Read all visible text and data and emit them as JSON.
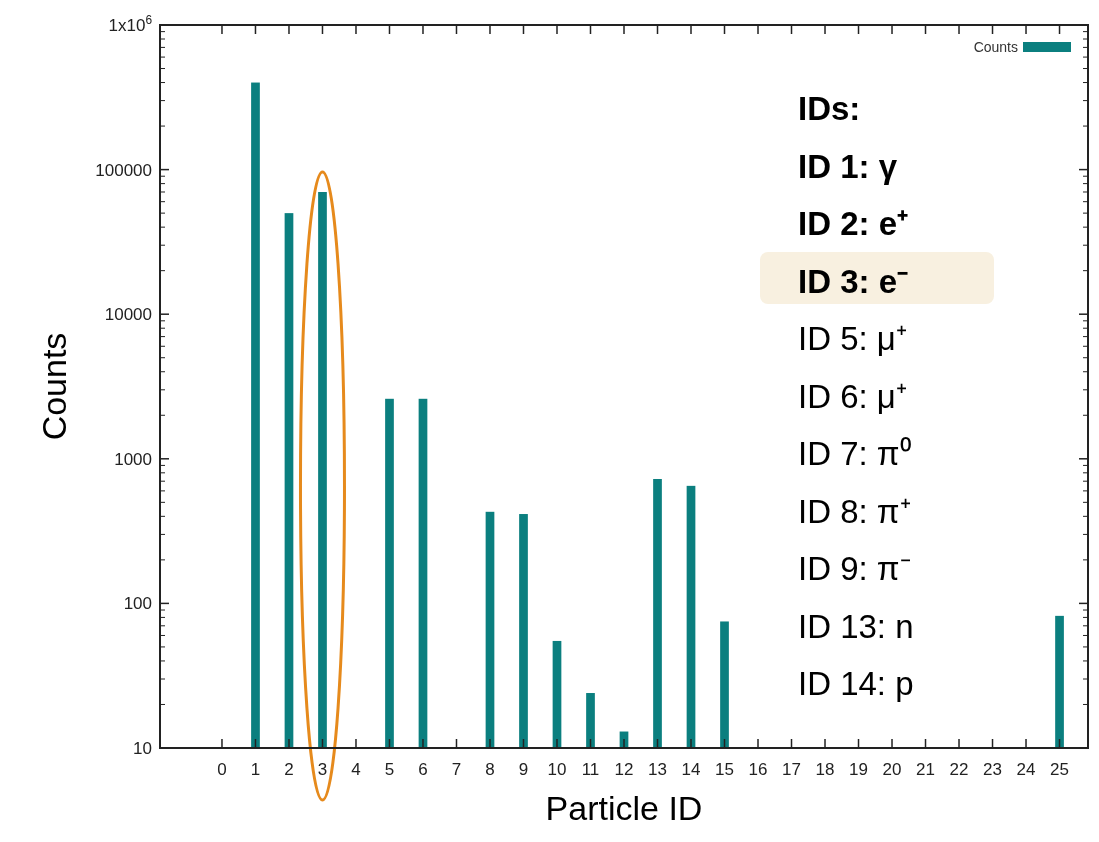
{
  "chart_data": {
    "type": "bar",
    "xlabel": "Particle ID",
    "ylabel": "Counts",
    "x": [
      1,
      2,
      3,
      5,
      6,
      8,
      9,
      10,
      11,
      12,
      13,
      14,
      15,
      25
    ],
    "series": [
      {
        "name": "Counts",
        "color": "#0b7f7f",
        "values": [
          400000,
          50000,
          70000,
          2600,
          2600,
          430,
          415,
          55,
          24,
          13,
          725,
          650,
          75,
          82
        ]
      }
    ],
    "xlim": [
      -1.85,
      25.85
    ],
    "xticks": [
      0,
      1,
      2,
      3,
      4,
      5,
      6,
      7,
      8,
      9,
      10,
      11,
      12,
      13,
      14,
      15,
      16,
      17,
      18,
      19,
      20,
      21,
      22,
      23,
      24,
      25
    ],
    "ylim": [
      10,
      1000000
    ],
    "yticks": [
      10,
      100,
      1000,
      10000,
      100000,
      {
        "value": 1000000,
        "label": "1x10$^{6}$"
      }
    ],
    "log": "y",
    "legend": "top right",
    "annotations": [
      "IDs:",
      "ID 1: γ",
      "ID 2: e⁺",
      "ID 3: e⁻",
      "ID 5: μ⁺",
      "ID 6: μ⁺",
      "ID 7: π⁰",
      "ID 8: π⁺",
      "ID 9: π⁻",
      "ID 13: n",
      "ID 14: p"
    ]
  }
}
